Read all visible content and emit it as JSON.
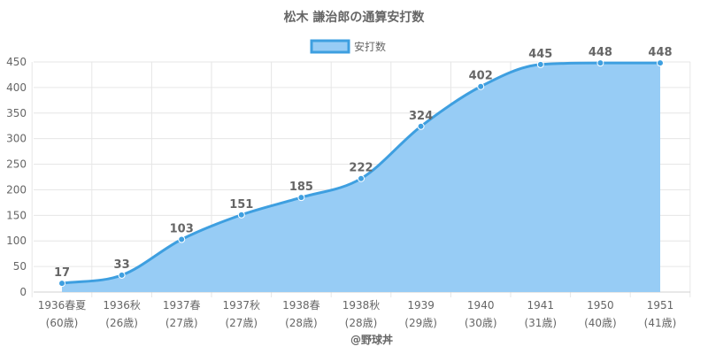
{
  "chart_data": {
    "type": "area",
    "title": "松木 謙治郎の通算安打数",
    "legend": {
      "label": "安打数",
      "position": "top"
    },
    "credit": "@野球丼",
    "categories": [
      [
        "1936春夏",
        "(60歳)"
      ],
      [
        "1936秋",
        "(26歳)"
      ],
      [
        "1937春",
        "(27歳)"
      ],
      [
        "1937秋",
        "(27歳)"
      ],
      [
        "1938春",
        "(28歳)"
      ],
      [
        "1938秋",
        "(28歳)"
      ],
      [
        "1939",
        "(29歳)"
      ],
      [
        "1940",
        "(30歳)"
      ],
      [
        "1941",
        "(31歳)"
      ],
      [
        "1950",
        "(40歳)"
      ],
      [
        "1951",
        "(41歳)"
      ]
    ],
    "series": [
      {
        "name": "安打数",
        "values": [
          17,
          33,
          103,
          151,
          185,
          222,
          324,
          402,
          445,
          448,
          448
        ]
      }
    ],
    "ylim": [
      0,
      450
    ],
    "yticks": [
      0,
      50,
      100,
      150,
      200,
      250,
      300,
      350,
      400,
      450
    ],
    "grid": true,
    "colors": {
      "fill": "#97ccf5",
      "line": "#3e9fe0",
      "grid": "#e6e6e6",
      "text": "#666666"
    }
  }
}
